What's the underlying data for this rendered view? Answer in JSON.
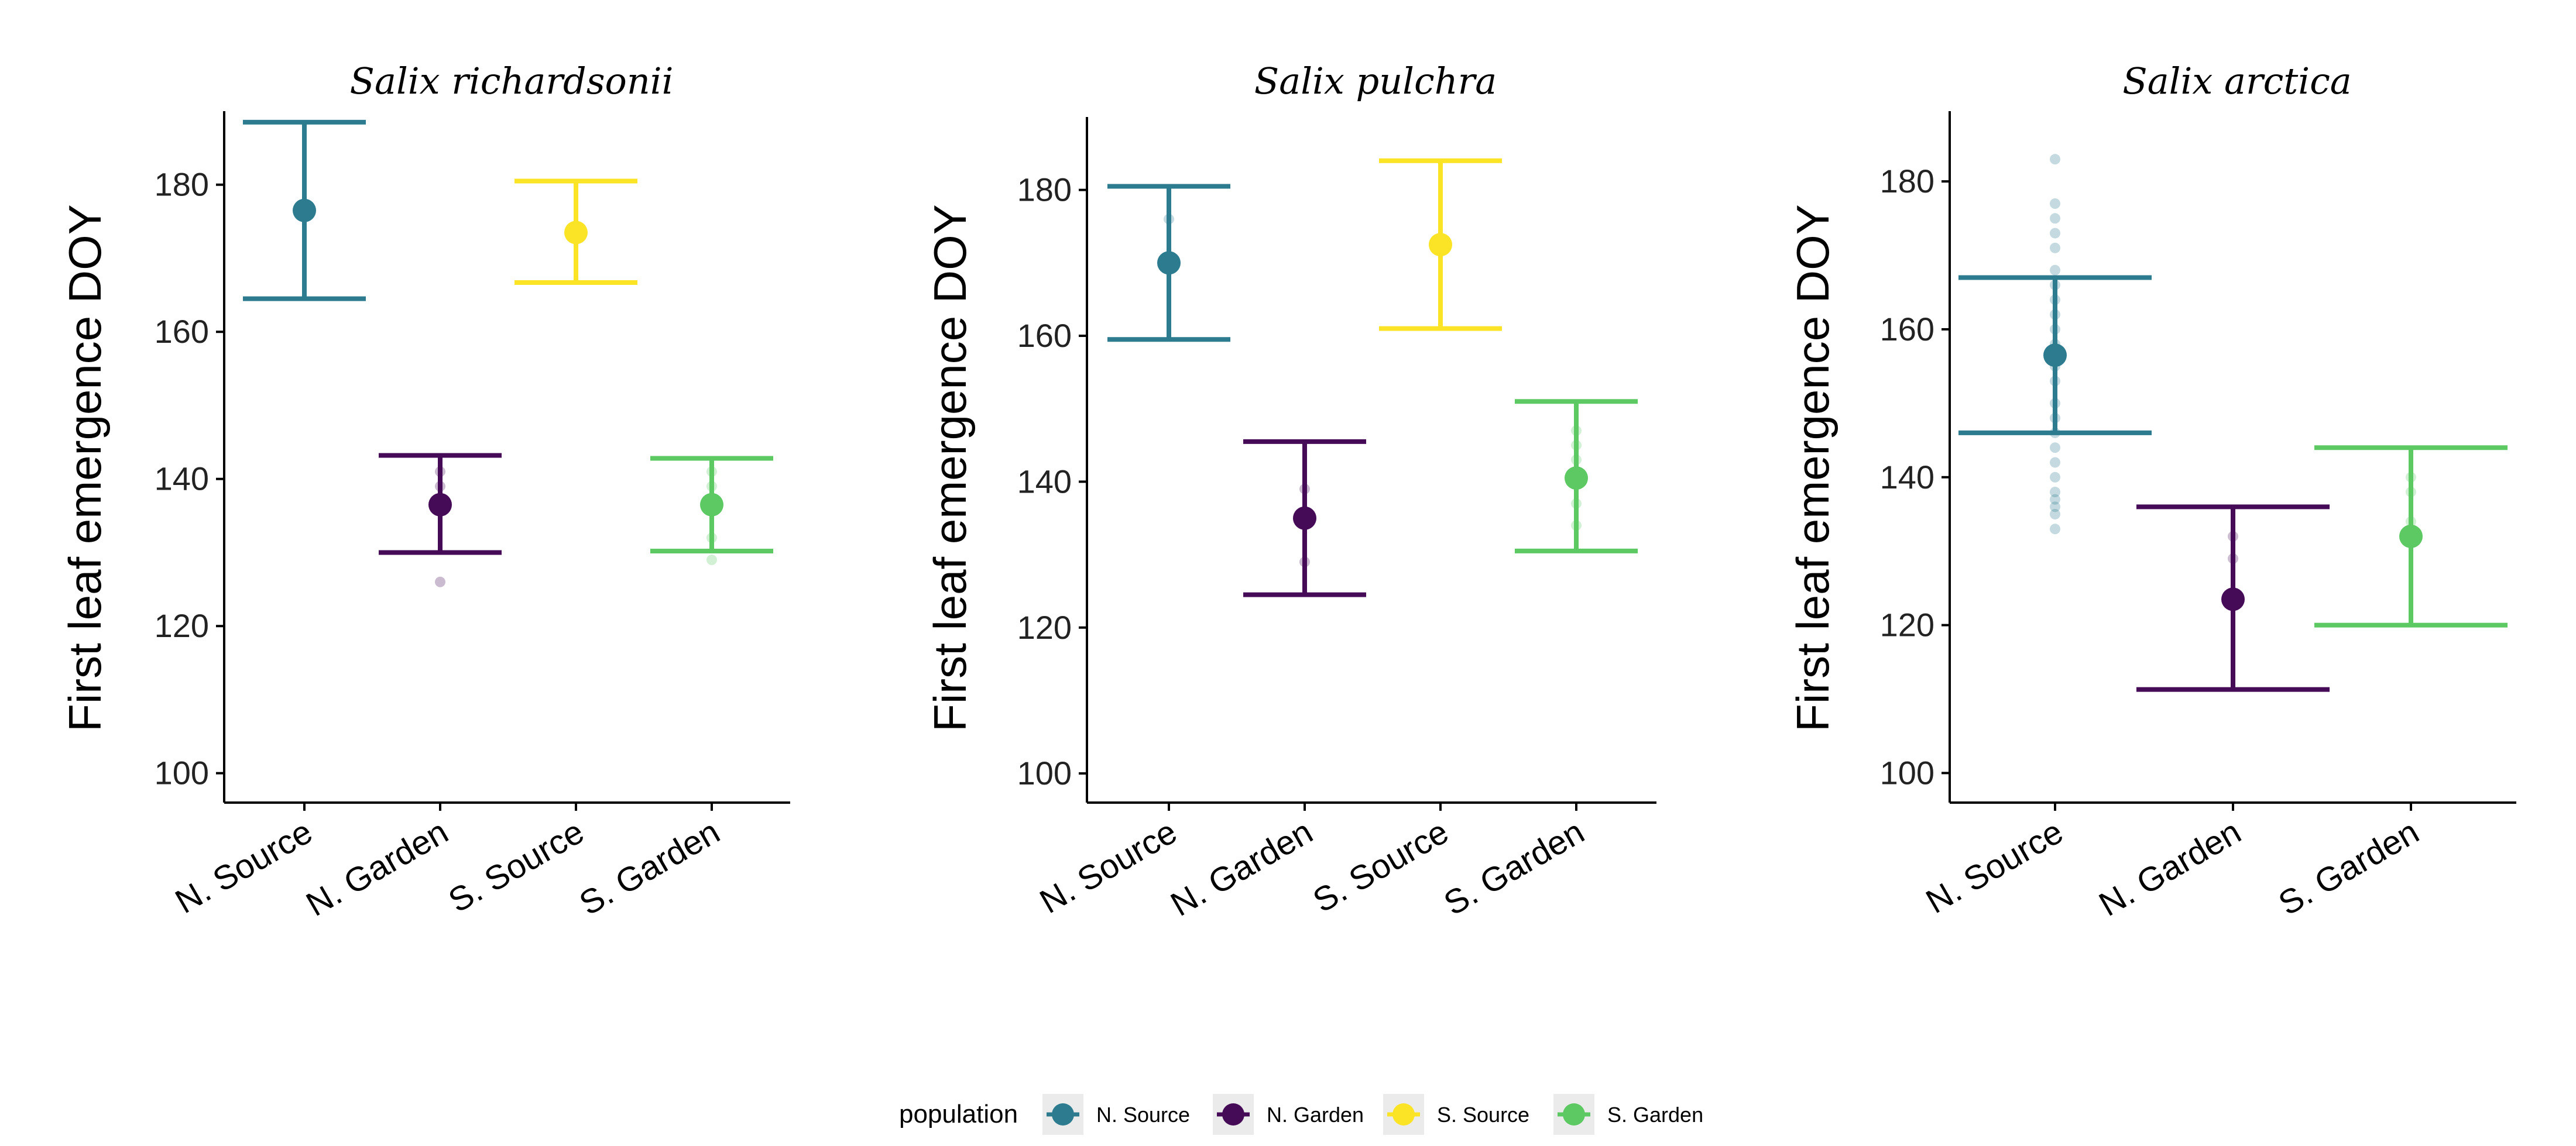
{
  "legend": {
    "title": "population",
    "items": [
      {
        "label": "N. Source",
        "color": "#2C7B8E"
      },
      {
        "label": "N. Garden",
        "color": "#450B57"
      },
      {
        "label": "S. Source",
        "color": "#FBE426"
      },
      {
        "label": "S. Garden",
        "color": "#5DC963"
      }
    ]
  },
  "chart_data": [
    {
      "type": "scatter",
      "title": "Salix richardsonii",
      "ylabel": "First leaf emergence DOY",
      "xlabel": "",
      "ylim": [
        96,
        190
      ],
      "yticks": [
        100,
        120,
        140,
        160,
        180
      ],
      "categories": [
        "N. Source",
        "N. Garden",
        "S. Source",
        "S. Garden"
      ],
      "series": [
        {
          "name": "N. Source",
          "category": "N. Source",
          "color": "#2C7B8E",
          "mean": 176.5,
          "lower": 164.5,
          "upper": 188.5,
          "points": []
        },
        {
          "name": "N. Garden",
          "category": "N. Garden",
          "color": "#450B57",
          "mean": 136.5,
          "lower": 130,
          "upper": 143.2,
          "points": [
            126,
            139,
            141
          ]
        },
        {
          "name": "S. Source",
          "category": "S. Source",
          "color": "#FBE426",
          "mean": 173.5,
          "lower": 166.7,
          "upper": 180.5,
          "points": []
        },
        {
          "name": "S. Garden",
          "category": "S. Garden",
          "color": "#5DC963",
          "mean": 136.5,
          "lower": 130.2,
          "upper": 142.8,
          "points": [
            129,
            132,
            139,
            141
          ]
        }
      ]
    },
    {
      "type": "scatter",
      "title": "Salix pulchra",
      "ylabel": "First leaf emergence DOY",
      "xlabel": "",
      "ylim": [
        96,
        190
      ],
      "yticks": [
        100,
        120,
        140,
        160,
        180
      ],
      "categories": [
        "N. Source",
        "N. Garden",
        "S. Source",
        "S. Garden"
      ],
      "series": [
        {
          "name": "N. Source",
          "category": "N. Source",
          "color": "#2C7B8E",
          "mean": 170,
          "lower": 159.5,
          "upper": 180.5,
          "points": [
            176
          ]
        },
        {
          "name": "N. Garden",
          "category": "N. Garden",
          "color": "#450B57",
          "mean": 135,
          "lower": 124.5,
          "upper": 145.5,
          "points": [
            129,
            139
          ]
        },
        {
          "name": "S. Source",
          "category": "S. Source",
          "color": "#FBE426",
          "mean": 172.5,
          "lower": 161,
          "upper": 184,
          "points": []
        },
        {
          "name": "S. Garden",
          "category": "S. Garden",
          "color": "#5DC963",
          "mean": 140.5,
          "lower": 130.5,
          "upper": 151,
          "points": [
            134,
            137,
            143,
            145,
            147
          ]
        }
      ]
    },
    {
      "type": "scatter",
      "title": "Salix arctica",
      "ylabel": "First leaf emergence DOY",
      "xlabel": "",
      "ylim": [
        96,
        189.5
      ],
      "yticks": [
        100,
        120,
        140,
        160,
        180
      ],
      "categories": [
        "N. Source",
        "N. Garden",
        "S. Garden"
      ],
      "series": [
        {
          "name": "N. Source",
          "category": "N. Source",
          "color": "#2C7B8E",
          "mean": 156.5,
          "lower": 146,
          "upper": 167,
          "points": [
            183,
            177,
            175,
            173,
            171,
            168,
            166,
            164,
            162,
            160,
            158,
            155,
            153,
            150,
            148,
            146,
            144,
            142,
            140,
            138,
            137,
            136,
            135,
            133
          ]
        },
        {
          "name": "N. Garden",
          "category": "N. Garden",
          "color": "#450B57",
          "mean": 123.5,
          "lower": 111.3,
          "upper": 136,
          "points": [
            129,
            132
          ]
        },
        {
          "name": "S. Garden",
          "category": "S. Garden",
          "color": "#5DC963",
          "mean": 132,
          "lower": 120,
          "upper": 144,
          "points": [
            134,
            138,
            140
          ]
        }
      ]
    }
  ]
}
